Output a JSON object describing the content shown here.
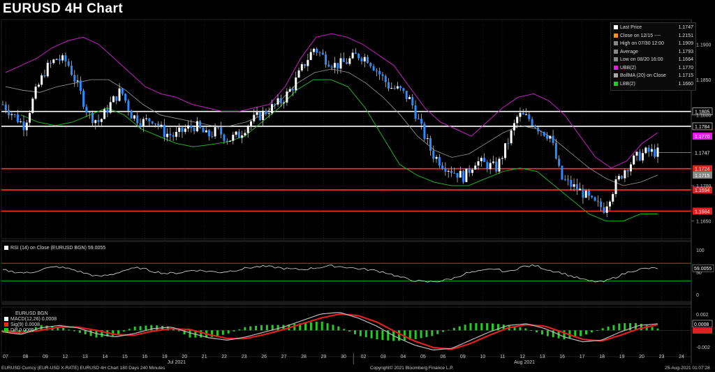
{
  "title": "EURUSD 4H Chart",
  "legend": {
    "items": [
      {
        "label": "Last Price",
        "value": "1.1747",
        "color": "#ffffff"
      },
      {
        "label": "Close on 12/15 ----",
        "value": "1.2151",
        "color": "#f7931e"
      },
      {
        "label": "High on 07/30 12:00",
        "value": "1.1909",
        "color": "#888888"
      },
      {
        "label": "Average",
        "value": "1.1793",
        "color": "#888888"
      },
      {
        "label": "Low on 08/20 16:00",
        "value": "1.1664",
        "color": "#888888"
      },
      {
        "label": "UBB(2)",
        "value": "1.1770",
        "color": "#e020e0"
      },
      {
        "label": "BollMA (20)  on Close",
        "value": "1.1715",
        "color": "#aaaaaa"
      },
      {
        "label": "LBB(2)",
        "value": "1.1660",
        "color": "#22cc22"
      }
    ]
  },
  "rsi_legend": "RSI (14)  on Close (EURUSD BGN) 59.0055",
  "macd_legend": {
    "title": "EURUSD BGN",
    "items": [
      {
        "label": "MACD(12,26)",
        "value": "0.0008",
        "color": "#ffffff"
      },
      {
        "label": "Sig(9)",
        "value": "0.0008",
        "color": "#ff2020"
      },
      {
        "label": "Diff",
        "value": "0.0005",
        "color": "#22cc22"
      }
    ]
  },
  "footer": {
    "left": "EURUSD Curncy (EUR-USD X-RATE) EURUSD 4H Chart 180 Days 240 Minutes",
    "center": "Copyright© 2021 Bloomberg Finance L.P.",
    "right": "25-Aug-2021 01:07:28"
  },
  "chart_data": [
    {
      "type": "candlestick",
      "title": "EURUSD 4H Chart",
      "y_ticks": [
        "1.1900",
        "1.1850",
        "1.1800",
        "1.1700",
        "1.1650"
      ],
      "ylim": [
        1.1625,
        1.1935
      ],
      "x_ticks": [
        "07",
        "08",
        "09",
        "12",
        "13",
        "14",
        "15",
        "16",
        "19",
        "20",
        "21",
        "22",
        "23",
        "26",
        "27",
        "28",
        "29",
        "30",
        "02",
        "03",
        "04",
        "05",
        "06",
        "09",
        "10",
        "11",
        "12",
        "13",
        "16",
        "17",
        "18",
        "19",
        "20",
        "23",
        "24"
      ],
      "x_month_labels": [
        "Jul 2021",
        "Aug 2021"
      ],
      "horizontal_levels": [
        {
          "value": 1.1805,
          "label": "1.1805",
          "color": "#ffffff"
        },
        {
          "value": 1.1784,
          "label": "1.1784",
          "color": "#ffffff"
        },
        {
          "value": 1.1724,
          "label": "1.1724",
          "color": "#ff3030"
        },
        {
          "value": 1.1694,
          "label": "1.1694",
          "color": "#ff3030"
        },
        {
          "value": 1.1664,
          "label": "1.1664",
          "color": "#ff3030"
        }
      ],
      "axis_tags": [
        {
          "value": 1.177,
          "label": "1.1770",
          "color": "#e020e0"
        },
        {
          "value": 1.1747,
          "label": "1.1747",
          "color": "#000000"
        },
        {
          "value": 1.1715,
          "label": "1.1715",
          "color": "#888888"
        }
      ],
      "close_path": [
        1.1815,
        1.18,
        1.1785,
        1.183,
        1.1865,
        1.188,
        1.1875,
        1.184,
        1.18,
        1.179,
        1.1815,
        1.1835,
        1.18,
        1.179,
        1.1795,
        1.1775,
        1.177,
        1.178,
        1.1785,
        1.177,
        1.1778,
        1.1765,
        1.1772,
        1.179,
        1.18,
        1.181,
        1.182,
        1.184,
        1.187,
        1.1895,
        1.188,
        1.187,
        1.1875,
        1.1885,
        1.188,
        1.186,
        1.184,
        1.1835,
        1.182,
        1.178,
        1.1745,
        1.173,
        1.172,
        1.1712,
        1.1735,
        1.173,
        1.1725,
        1.176,
        1.18,
        1.1795,
        1.178,
        1.177,
        1.171,
        1.17,
        1.169,
        1.1675,
        1.1668,
        1.17,
        1.1725,
        1.174,
        1.1748,
        1.1747
      ],
      "ubb_path": [
        1.186,
        1.187,
        1.188,
        1.1895,
        1.1905,
        1.191,
        1.19,
        1.188,
        1.186,
        1.184,
        1.183,
        1.1825,
        1.1815,
        1.181,
        1.1805,
        1.1805,
        1.181,
        1.1815,
        1.184,
        1.188,
        1.191,
        1.1915,
        1.191,
        1.19,
        1.1885,
        1.187,
        1.184,
        1.181,
        1.179,
        1.178,
        1.177,
        1.179,
        1.181,
        1.1825,
        1.183,
        1.182,
        1.18,
        1.177,
        1.174,
        1.1725,
        1.1735,
        1.176,
        1.1775
      ],
      "bollma_path": [
        1.184,
        1.1835,
        1.1832,
        1.184,
        1.1845,
        1.185,
        1.185,
        1.1835,
        1.1815,
        1.18,
        1.1795,
        1.179,
        1.1785,
        1.1784,
        1.179,
        1.18,
        1.182,
        1.1845,
        1.186,
        1.1865,
        1.186,
        1.1845,
        1.1825,
        1.18,
        1.177,
        1.175,
        1.174,
        1.1745,
        1.176,
        1.1775,
        1.1785,
        1.178,
        1.1765,
        1.1745,
        1.1725,
        1.171,
        1.17,
        1.1705,
        1.1715
      ],
      "lbb_path": [
        1.18,
        1.179,
        1.1785,
        1.179,
        1.18,
        1.181,
        1.18,
        1.178,
        1.177,
        1.176,
        1.1755,
        1.1758,
        1.1762,
        1.177,
        1.179,
        1.181,
        1.1835,
        1.185,
        1.185,
        1.184,
        1.181,
        1.177,
        1.173,
        1.1715,
        1.1705,
        1.17,
        1.17,
        1.171,
        1.172,
        1.1725,
        1.172,
        1.17,
        1.168,
        1.166,
        1.165,
        1.165,
        1.166,
        1.166
      ],
      "last_price": 1.1747
    },
    {
      "type": "line",
      "title": "RSI (14) on Close (EURUSD BGN)",
      "y_ticks": [
        "100",
        "50",
        "0"
      ],
      "ylim": [
        0,
        100
      ],
      "levels": [
        {
          "value": 70,
          "color": "#ff3030"
        },
        {
          "value": 30,
          "color": "#22cc22"
        }
      ],
      "last_value": "59.0055",
      "rsi_path": [
        55,
        50,
        48,
        58,
        62,
        57,
        48,
        40,
        45,
        55,
        60,
        52,
        47,
        49,
        55,
        52,
        50,
        54,
        60,
        63,
        61,
        57,
        56,
        60,
        64,
        62,
        58,
        55,
        50,
        40,
        32,
        28,
        30,
        36,
        48,
        52,
        58,
        50,
        62,
        65,
        55,
        48,
        38,
        30,
        28,
        40,
        52,
        58,
        59
      ]
    },
    {
      "type": "line",
      "title": "MACD",
      "y_ticks": [
        "0.002",
        "0.000",
        "-0.002"
      ],
      "ylim": [
        -0.0027,
        0.0025
      ],
      "macd_last": "0.0008",
      "macd_path": [
        -0.0002,
        -0.0005,
        0.0003,
        0.0006,
        0.0003,
        -0.0004,
        -0.0008,
        -0.0004,
        0.0002,
        0.0004,
        -0.0003,
        -0.0009,
        -0.0012,
        -0.0008,
        -0.0002,
        0.0004,
        0.0012,
        0.002,
        0.0022,
        0.0015,
        0.0005,
        -0.0008,
        -0.0018,
        -0.0024,
        -0.0022,
        -0.0012,
        -0.0002,
        0.0006,
        0.0008,
        0.0002,
        -0.0008,
        -0.0014,
        -0.0012,
        -0.0002,
        0.0006,
        0.0008
      ],
      "sig_path": [
        -0.0001,
        -0.0003,
        0.0,
        0.0004,
        0.0004,
        0.0,
        -0.0005,
        -0.0006,
        -0.0001,
        0.0002,
        0.0001,
        -0.0005,
        -0.001,
        -0.001,
        -0.0005,
        0.0001,
        0.0008,
        0.0015,
        0.002,
        0.0018,
        0.001,
        -0.0002,
        -0.0013,
        -0.0021,
        -0.0023,
        -0.0016,
        -0.0006,
        0.0003,
        0.0007,
        0.0005,
        -0.0003,
        -0.0011,
        -0.0013,
        -0.0006,
        0.0002,
        0.0007
      ]
    }
  ]
}
